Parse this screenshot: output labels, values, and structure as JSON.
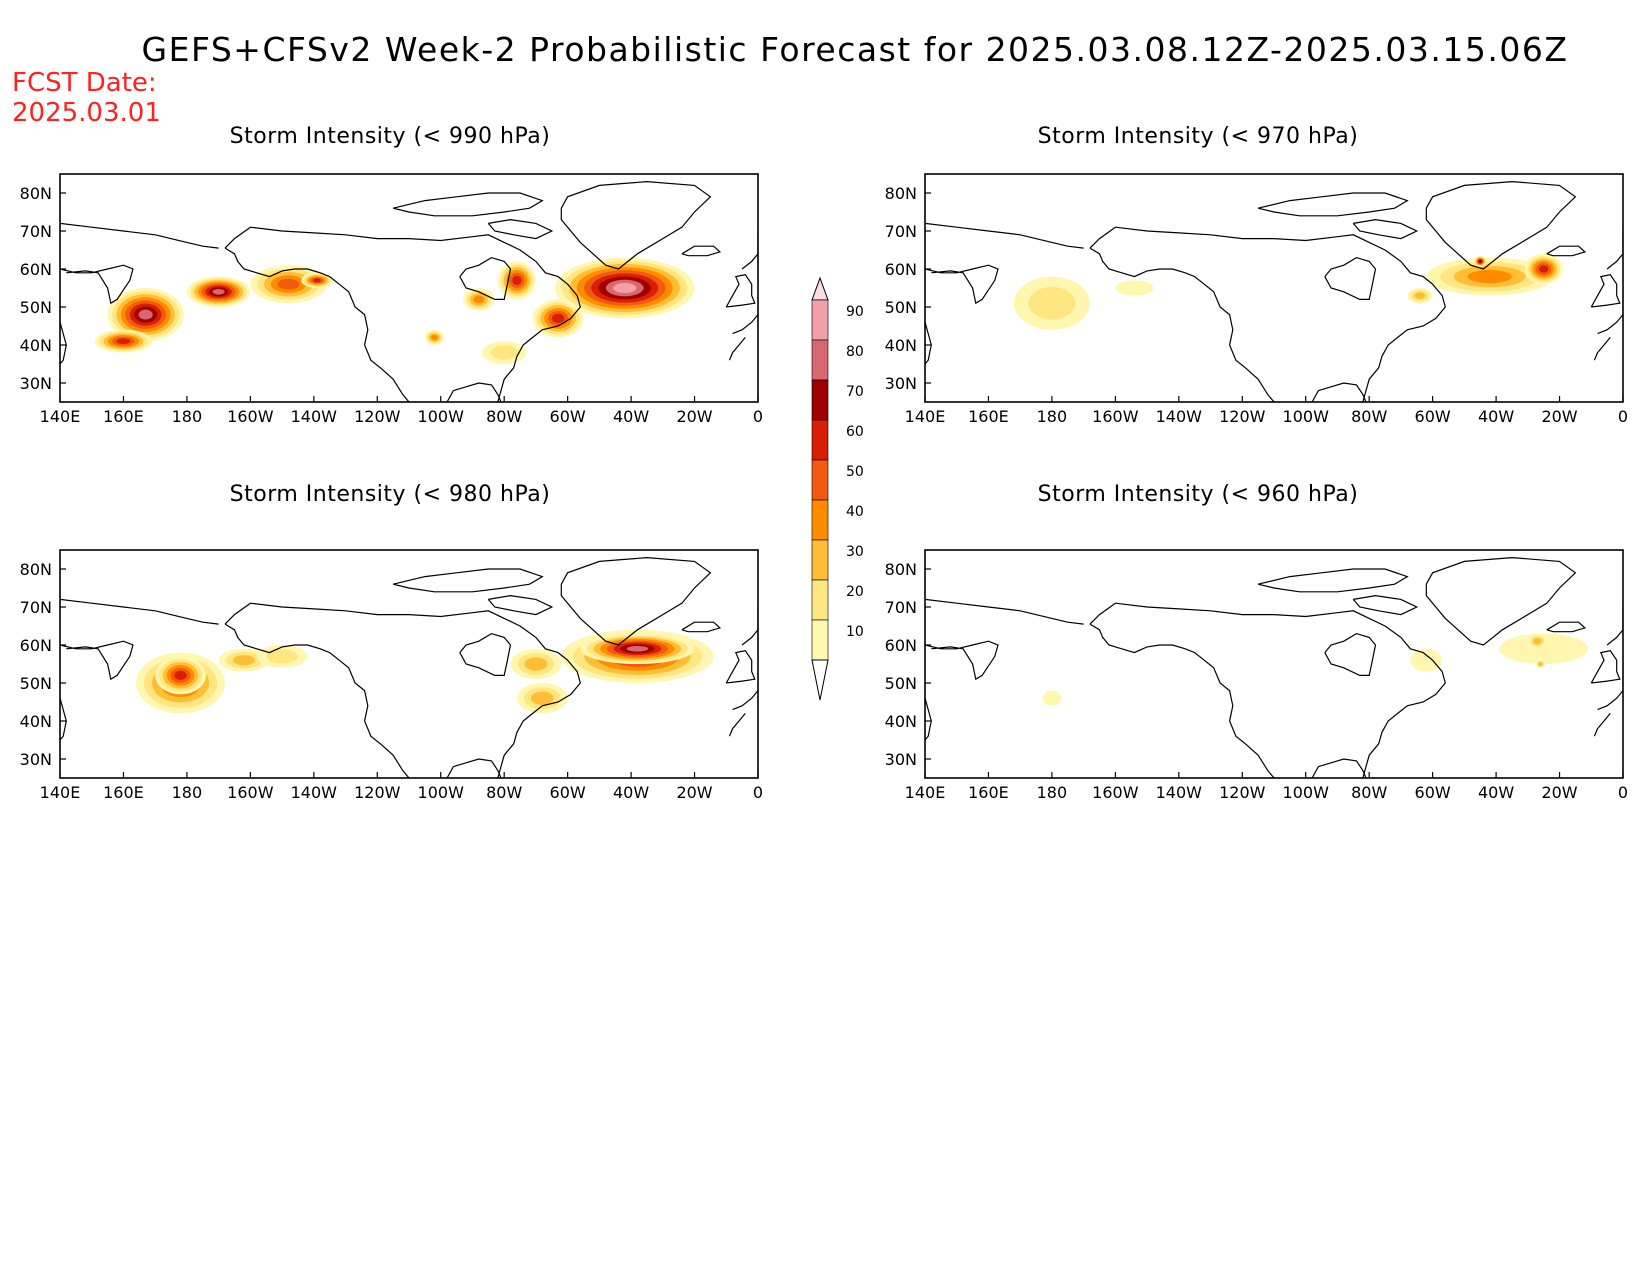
{
  "title": "GEFS+CFSv2 Week-2 Probabilistic Forecast for 2025.03.08.12Z-2025.03.15.06Z",
  "fcst_date": {
    "label": "FCST Date:",
    "value": "2025.03.01"
  },
  "colors": {
    "levels": [
      10,
      20,
      30,
      40,
      50,
      60,
      70,
      80,
      90
    ],
    "fills": [
      "#fff6b0",
      "#ffe680",
      "#ffbe33",
      "#ff8c00",
      "#f25a10",
      "#d81e05",
      "#a00000",
      "#d86870",
      "#efa0a8",
      "#fbdce0"
    ]
  },
  "panels": [
    {
      "id": "p990",
      "title": "Storm Intensity (< 990 hPa)",
      "blobs": [
        {
          "lon": 167,
          "lat": 48,
          "rlon": 12,
          "rlat": 7,
          "level": 8
        },
        {
          "lon": 190,
          "lat": 54,
          "rlon": 10,
          "rlat": 4,
          "level": 8
        },
        {
          "lon": 160,
          "lat": 41,
          "rlon": 9,
          "rlat": 3,
          "level": 6
        },
        {
          "lon": 212,
          "lat": 56,
          "rlon": 12,
          "rlat": 5,
          "level": 5
        },
        {
          "lon": 221,
          "lat": 57,
          "rlon": 5,
          "rlat": 2,
          "level": 6
        },
        {
          "lon": 284,
          "lat": 57,
          "rlon": 6,
          "rlat": 5,
          "level": 6
        },
        {
          "lon": 297,
          "lat": 47,
          "rlon": 8,
          "rlat": 5,
          "level": 6
        },
        {
          "lon": 318,
          "lat": 55,
          "rlon": 22,
          "rlat": 8,
          "level": 9
        },
        {
          "lon": 272,
          "lat": 52,
          "rlon": 5,
          "rlat": 3,
          "level": 4
        },
        {
          "lon": 280,
          "lat": 38,
          "rlon": 7,
          "rlat": 3,
          "level": 2
        },
        {
          "lon": 258,
          "lat": 42,
          "rlon": 3,
          "rlat": 2,
          "level": 4
        }
      ]
    },
    {
      "id": "p970",
      "title": "Storm Intensity (< 970 hPa)",
      "blobs": [
        {
          "lon": 180,
          "lat": 51,
          "rlon": 12,
          "rlat": 7,
          "level": 2
        },
        {
          "lon": 206,
          "lat": 55,
          "rlon": 6,
          "rlat": 2,
          "level": 1
        },
        {
          "lon": 318,
          "lat": 58,
          "rlon": 20,
          "rlat": 5,
          "level": 4
        },
        {
          "lon": 335,
          "lat": 60,
          "rlon": 6,
          "rlat": 4,
          "level": 6
        },
        {
          "lon": 315,
          "lat": 62,
          "rlon": 2,
          "rlat": 1.5,
          "level": 7
        },
        {
          "lon": 296,
          "lat": 53,
          "rlon": 4,
          "rlat": 2,
          "level": 3
        }
      ]
    },
    {
      "id": "p980",
      "title": "Storm Intensity (< 980 hPa)",
      "blobs": [
        {
          "lon": 178,
          "lat": 50,
          "rlon": 14,
          "rlat": 8,
          "level": 5
        },
        {
          "lon": 178,
          "lat": 52,
          "rlon": 8,
          "rlat": 5,
          "level": 6
        },
        {
          "lon": 198,
          "lat": 56,
          "rlon": 8,
          "rlat": 3,
          "level": 3
        },
        {
          "lon": 210,
          "lat": 57,
          "rlon": 8,
          "rlat": 3,
          "level": 2
        },
        {
          "lon": 322,
          "lat": 57,
          "rlon": 24,
          "rlat": 7,
          "level": 6
        },
        {
          "lon": 322,
          "lat": 59,
          "rlon": 18,
          "rlat": 4,
          "level": 8
        },
        {
          "lon": 290,
          "lat": 55,
          "rlon": 8,
          "rlat": 4,
          "level": 3
        },
        {
          "lon": 292,
          "lat": 46,
          "rlon": 8,
          "rlat": 4,
          "level": 3
        }
      ]
    },
    {
      "id": "p960",
      "title": "Storm Intensity (< 960 hPa)",
      "blobs": [
        {
          "lon": 180,
          "lat": 46,
          "rlon": 3,
          "rlat": 2,
          "level": 1
        },
        {
          "lon": 335,
          "lat": 59,
          "rlon": 14,
          "rlat": 4,
          "level": 1
        },
        {
          "lon": 333,
          "lat": 61,
          "rlon": 3,
          "rlat": 2,
          "level": 3
        },
        {
          "lon": 334,
          "lat": 55,
          "rlon": 1.5,
          "rlat": 1,
          "level": 3
        },
        {
          "lon": 298,
          "lat": 56,
          "rlon": 5,
          "rlat": 3,
          "level": 1
        }
      ]
    }
  ],
  "axes": {
    "lon_ticks": [
      "140E",
      "160E",
      "180",
      "160W",
      "140W",
      "120W",
      "100W",
      "80W",
      "60W",
      "40W",
      "20W",
      "0"
    ],
    "lat_ticks": [
      "80N",
      "70N",
      "60N",
      "50N",
      "40N",
      "30N"
    ]
  },
  "colorbar": {
    "labels": [
      "90",
      "80",
      "70",
      "60",
      "50",
      "40",
      "30",
      "20",
      "10"
    ]
  }
}
